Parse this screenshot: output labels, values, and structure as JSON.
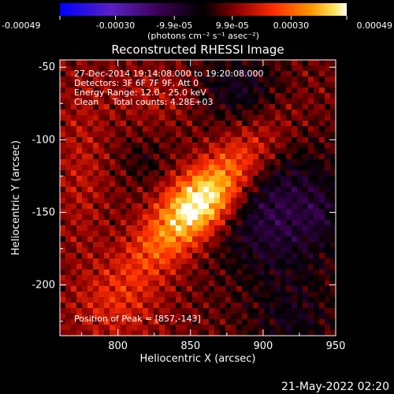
{
  "chart_data": {
    "type": "heatmap",
    "title": "Reconstructed RHESSI Image",
    "xlabel": "Heliocentric X (arcsec)",
    "ylabel": "Heliocentric Y (arcsec)",
    "xlim": [
      760,
      950
    ],
    "ylim": [
      -235,
      -45
    ],
    "x_ticks": [
      800,
      850,
      900,
      950
    ],
    "y_ticks": [
      -50,
      -100,
      -150,
      -200
    ],
    "colorbar": {
      "range": [
        -0.00049,
        0.00049
      ],
      "tick_values": [
        -0.00049,
        -0.0003,
        -9.9e-05,
        9.9e-05,
        0.0003,
        0.00049
      ],
      "tick_labels": [
        "-0.00049",
        "-0.00030",
        "-9.9e-05",
        "9.9e-05",
        "0.00030",
        "0.00049"
      ],
      "unit_label": "(photons cm⁻² s⁻¹ asec⁻²)"
    },
    "colors": {
      "colormap": [
        "#0000ff",
        "#6a2ab0",
        "#5a0070",
        "#000000",
        "#8a0000",
        "#ff3000",
        "#ff9000",
        "#ffe040",
        "#ffffff"
      ]
    },
    "annotations": [
      "27-Dec-2014 19:14:08.000 to 19:20:08.000",
      "Detectors: 3F 6F 7F 9F, Att 0",
      "Energy Range: 12.0 - 25.0 keV",
      "Clean     Total counts: 4.28E+03"
    ],
    "peak_label": "Position of Peak = [857,-143]",
    "peak": [
      857,
      -143
    ],
    "timestamp": "21-May-2022 02:20"
  }
}
